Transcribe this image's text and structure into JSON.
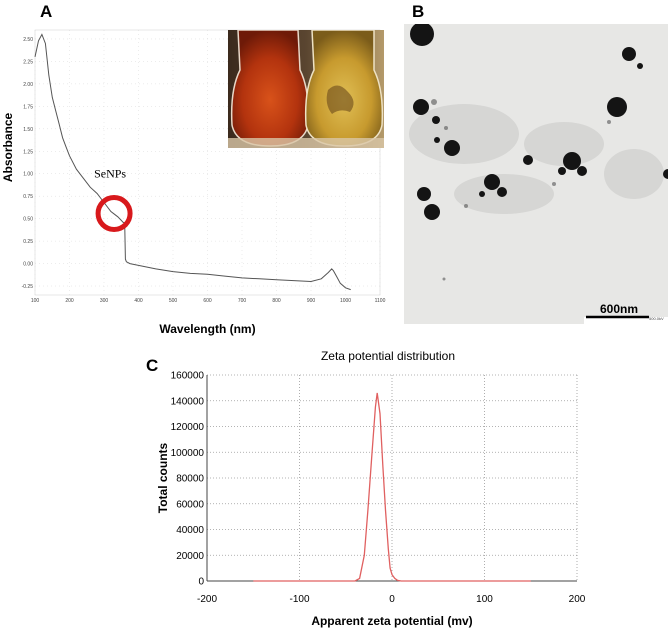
{
  "panels": {
    "a": "A",
    "b": "B",
    "c": "C"
  },
  "chart_data": [
    {
      "type": "line",
      "panel": "A",
      "title": "",
      "xlabel": "Wavelength (nm)",
      "ylabel": "Absorbance",
      "annotation": "SeNPs",
      "annotation_x": 335,
      "xlim": [
        100,
        1100
      ],
      "ylim": [
        -0.35,
        2.6
      ],
      "xticks": [
        "100",
        "200",
        "300",
        "400",
        "500",
        "600",
        "700",
        "800",
        "900",
        "1000",
        "1100"
      ],
      "yticks": [
        "-0.25",
        "0.00",
        "0.25",
        "0.50",
        "0.75",
        "1.00",
        "1.25",
        "1.50",
        "1.75",
        "2.00",
        "2.25",
        "2.50"
      ],
      "grid": "dotted",
      "series": [
        {
          "color": "#555555",
          "x": [
            100,
            110,
            120,
            130,
            140,
            150,
            160,
            170,
            180,
            190,
            200,
            220,
            240,
            260,
            280,
            300,
            320,
            330,
            340,
            350,
            355,
            360,
            362,
            365,
            375,
            400,
            450,
            500,
            550,
            600,
            650,
            700,
            750,
            800,
            850,
            900,
            930,
            950,
            960,
            965,
            975,
            985,
            1000,
            1015
          ],
          "y": [
            2.3,
            2.48,
            2.55,
            2.45,
            2.1,
            1.85,
            1.7,
            1.55,
            1.4,
            1.3,
            1.2,
            1.05,
            0.95,
            0.85,
            0.78,
            0.68,
            0.58,
            0.55,
            0.52,
            0.48,
            0.46,
            0.45,
            0.05,
            0.02,
            0.0,
            -0.02,
            -0.06,
            -0.09,
            -0.11,
            -0.12,
            -0.14,
            -0.16,
            -0.17,
            -0.18,
            -0.19,
            -0.2,
            -0.17,
            -0.1,
            -0.06,
            -0.08,
            -0.15,
            -0.22,
            -0.27,
            -0.29
          ]
        }
      ]
    },
    {
      "type": "line",
      "panel": "C",
      "title": "Zeta potential distribution",
      "xlabel": "Apparent zeta potential (mv)",
      "ylabel": "Total counts",
      "xlim": [
        -200,
        200
      ],
      "ylim": [
        0,
        160000
      ],
      "xticks": [
        "-200",
        "-100",
        "0",
        "100",
        "200"
      ],
      "yticks": [
        "0",
        "20000",
        "40000",
        "60000",
        "80000",
        "100000",
        "120000",
        "140000",
        "160000"
      ],
      "grid": "dotted",
      "series": [
        {
          "color": "#e06060",
          "x": [
            -150,
            -40,
            -35,
            -30,
            -26,
            -22,
            -18,
            -16,
            -13,
            -10,
            -7,
            -4,
            -2,
            0,
            3,
            6,
            10,
            150
          ],
          "y": [
            0,
            0,
            2000,
            20000,
            55000,
            95000,
            135000,
            146000,
            130000,
            90000,
            55000,
            25000,
            10000,
            5000,
            2000,
            500,
            0,
            0
          ]
        }
      ]
    }
  ],
  "tem": {
    "scale_label": "600nm",
    "corner_caption": "500.0kV"
  },
  "colors": {
    "line_a": "#555555",
    "line_c": "#e06060",
    "circle_marker": "#d8191c"
  }
}
